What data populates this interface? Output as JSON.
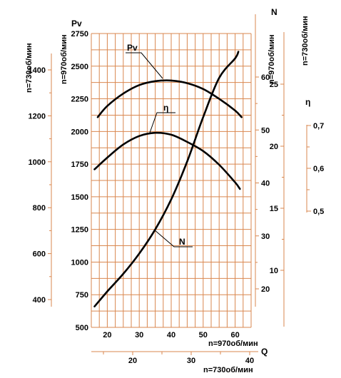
{
  "colors": {
    "grid": "#d9874f",
    "curves": "#000000",
    "background": "#ffffff"
  },
  "chart_data": {
    "type": "line",
    "title": "",
    "grid": true,
    "x_axis": {
      "label": "Q",
      "primary_label": "n=970об/мин",
      "primary_range": [
        15,
        65
      ],
      "primary_ticks": [
        "20",
        "30",
        "40",
        "50",
        "60"
      ],
      "secondary_label": "n=730об/мин",
      "secondary_ticks": [
        "20",
        "30",
        "40"
      ]
    },
    "y_axes": {
      "left_730": {
        "label": "n=730об/мин",
        "ticks": [
          "400",
          "600",
          "800",
          "1000",
          "1200",
          "1400"
        ]
      },
      "pv": {
        "label": "Pv",
        "range": [
          500,
          2750
        ],
        "ticks": [
          "500",
          "750",
          "1000",
          "1250",
          "1500",
          "1750",
          "2000",
          "2250",
          "2500",
          "2750"
        ]
      },
      "n_970": {
        "label": "n=970об/мин",
        "ticks": [
          "20",
          "30",
          "40",
          "50",
          "60"
        ]
      },
      "n_730": {
        "label": "n=730об/мин",
        "ticks": [
          "10",
          "15",
          "20",
          "25"
        ]
      },
      "n_top_label": "N",
      "eta": {
        "label": "η",
        "ticks": [
          "0,5",
          "0,6",
          "0,7"
        ]
      }
    },
    "series": [
      {
        "name": "Pv",
        "axis": "pv",
        "x": [
          17,
          20,
          25,
          30,
          35,
          40,
          45,
          50,
          55,
          60,
          62
        ],
        "y": [
          2110,
          2195,
          2290,
          2355,
          2385,
          2390,
          2370,
          2325,
          2250,
          2160,
          2110
        ]
      },
      {
        "name": "η",
        "axis": "pv",
        "x": [
          16,
          20,
          25,
          30,
          35,
          40,
          45,
          50,
          55,
          60,
          61.5
        ],
        "y": [
          1710,
          1800,
          1900,
          1965,
          1990,
          1975,
          1920,
          1850,
          1745,
          1610,
          1560
        ]
      },
      {
        "name": "N",
        "axis": "pv",
        "x": [
          16,
          20,
          25,
          30,
          35,
          40,
          45,
          50,
          55,
          60,
          61
        ],
        "y": [
          660,
          775,
          910,
          1065,
          1250,
          1480,
          1770,
          2110,
          2410,
          2560,
          2610
        ]
      }
    ],
    "curve_labels": {
      "pv": "Pv",
      "eta": "η",
      "n": "N"
    }
  }
}
